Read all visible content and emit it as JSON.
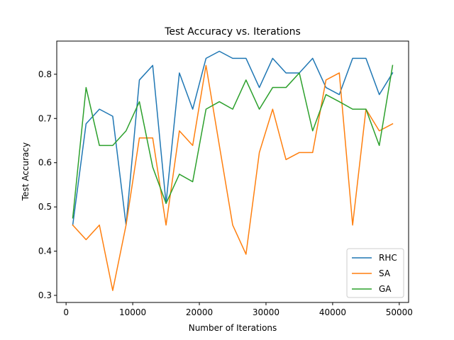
{
  "chart_data": {
    "type": "line",
    "title": "Test Accuracy vs. Iterations",
    "xlabel": "Number of Iterations",
    "ylabel": "Test Accuracy",
    "xlim": [
      -1400,
      51400
    ],
    "ylim": [
      0.284,
      0.875
    ],
    "xticks": [
      0,
      10000,
      20000,
      30000,
      40000,
      50000
    ],
    "yticks": [
      0.3,
      0.4,
      0.5,
      0.6,
      0.7,
      0.8
    ],
    "grid": false,
    "legend_position": "lower-right",
    "x": [
      1000,
      3000,
      5000,
      7000,
      9000,
      11000,
      13000,
      15000,
      17000,
      19000,
      21000,
      23000,
      25000,
      27000,
      29000,
      31000,
      33000,
      35000,
      37000,
      39000,
      41000,
      43000,
      45000,
      47000,
      49000
    ],
    "series": [
      {
        "name": "RHC",
        "color": "#1f77b4",
        "values": [
          0.459,
          0.688,
          0.721,
          0.705,
          0.459,
          0.787,
          0.82,
          0.508,
          0.803,
          0.721,
          0.836,
          0.852,
          0.836,
          0.836,
          0.77,
          0.836,
          0.803,
          0.803,
          0.836,
          0.77,
          0.754,
          0.836,
          0.836,
          0.754,
          0.803
        ]
      },
      {
        "name": "SA",
        "color": "#ff7f0e",
        "values": [
          0.459,
          0.426,
          0.459,
          0.311,
          0.459,
          0.656,
          0.656,
          0.459,
          0.672,
          0.639,
          0.82,
          0.639,
          0.459,
          0.393,
          0.623,
          0.721,
          0.607,
          0.623,
          0.623,
          0.787,
          0.803,
          0.459,
          0.721,
          0.672,
          0.688
        ]
      },
      {
        "name": "GA",
        "color": "#2ca02c",
        "values": [
          0.475,
          0.77,
          0.639,
          0.639,
          0.672,
          0.738,
          0.59,
          0.508,
          0.574,
          0.557,
          0.721,
          0.738,
          0.721,
          0.787,
          0.721,
          0.77,
          0.77,
          0.803,
          0.672,
          0.754,
          0.738,
          0.721,
          0.721,
          0.639,
          0.82
        ]
      }
    ]
  }
}
